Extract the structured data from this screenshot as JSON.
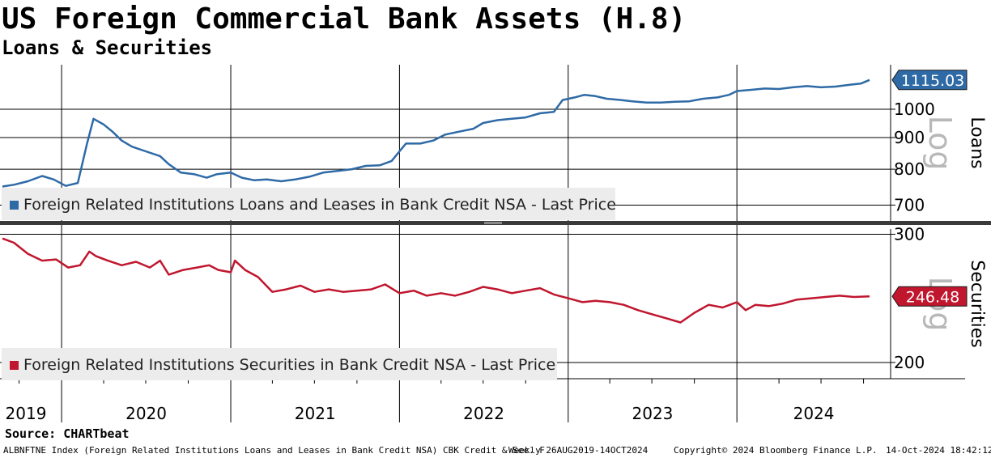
{
  "title": "US Foreign Commercial Bank Assets (H.8)",
  "subtitle": "Loans & Securities",
  "source": "Source: CHARTbeat",
  "footer": {
    "index_desc": "ALBNFTNE Index (Foreign Related Institutions Loans and Leases in Bank Credit NSA) CBK Credit & Sec. F",
    "range": "Weekly 26AUG2019-14OCT2024",
    "copyright": "Copyright© 2024 Bloomberg Finance L.P.",
    "timestamp": "14-Oct-2024 18:42:12"
  },
  "colors": {
    "loans": "#2e6aa6",
    "securities": "#c0162e",
    "grid": "#000000",
    "legend_bg": "#ececec"
  },
  "chart_data": [
    {
      "type": "line",
      "panel": "top",
      "ylabel": "Loans",
      "scale_label": "Log",
      "log_scale": true,
      "ylim": [
        660,
        1180
      ],
      "yticks": [
        700,
        800,
        900,
        1000
      ],
      "last_value_label": "1115.03",
      "legend": "Foreign Related Institutions Loans and Leases in Bank Credit NSA - Last Price",
      "x_start": "2019-08-26",
      "x_end": "2024-10-14",
      "x_tick_labels": [
        "2019",
        "2020",
        "2021",
        "2022",
        "2023",
        "2024"
      ],
      "series": [
        {
          "name": "Foreign Related Institutions Loans and Leases in Bank Credit NSA - Last Price",
          "points": [
            [
              "2019-08-26",
              750
            ],
            [
              "2019-09-20",
              755
            ],
            [
              "2019-10-20",
              765
            ],
            [
              "2019-11-20",
              780
            ],
            [
              "2019-12-15",
              770
            ],
            [
              "2020-01-10",
              752
            ],
            [
              "2020-02-05",
              760
            ],
            [
              "2020-02-25",
              880
            ],
            [
              "2020-03-10",
              965
            ],
            [
              "2020-04-01",
              945
            ],
            [
              "2020-04-20",
              920
            ],
            [
              "2020-05-10",
              890
            ],
            [
              "2020-06-01",
              870
            ],
            [
              "2020-07-01",
              855
            ],
            [
              "2020-08-01",
              840
            ],
            [
              "2020-08-20",
              815
            ],
            [
              "2020-09-15",
              790
            ],
            [
              "2020-10-15",
              785
            ],
            [
              "2020-11-10",
              775
            ],
            [
              "2020-12-01",
              785
            ],
            [
              "2021-01-01",
              790
            ],
            [
              "2021-01-25",
              775
            ],
            [
              "2021-02-20",
              768
            ],
            [
              "2021-03-20",
              770
            ],
            [
              "2021-04-20",
              765
            ],
            [
              "2021-05-20",
              770
            ],
            [
              "2021-06-20",
              778
            ],
            [
              "2021-07-20",
              790
            ],
            [
              "2021-08-20",
              795
            ],
            [
              "2021-09-20",
              800
            ],
            [
              "2021-10-20",
              810
            ],
            [
              "2021-11-20",
              812
            ],
            [
              "2021-12-15",
              825
            ],
            [
              "2022-01-01",
              855
            ],
            [
              "2022-01-15",
              880
            ],
            [
              "2022-02-15",
              880
            ],
            [
              "2022-03-15",
              890
            ],
            [
              "2022-04-10",
              910
            ],
            [
              "2022-05-10",
              920
            ],
            [
              "2022-06-10",
              930
            ],
            [
              "2022-07-01",
              950
            ],
            [
              "2022-08-01",
              960
            ],
            [
              "2022-09-01",
              965
            ],
            [
              "2022-10-01",
              970
            ],
            [
              "2022-11-01",
              985
            ],
            [
              "2022-12-01",
              990
            ],
            [
              "2022-12-20",
              1035
            ],
            [
              "2023-01-15",
              1045
            ],
            [
              "2023-02-05",
              1055
            ],
            [
              "2023-03-01",
              1050
            ],
            [
              "2023-03-25",
              1040
            ],
            [
              "2023-04-25",
              1035
            ],
            [
              "2023-05-20",
              1030
            ],
            [
              "2023-06-20",
              1025
            ],
            [
              "2023-07-20",
              1025
            ],
            [
              "2023-08-20",
              1028
            ],
            [
              "2023-09-20",
              1030
            ],
            [
              "2023-10-20",
              1040
            ],
            [
              "2023-11-20",
              1045
            ],
            [
              "2023-12-15",
              1055
            ],
            [
              "2024-01-01",
              1070
            ],
            [
              "2024-02-01",
              1075
            ],
            [
              "2024-03-01",
              1080
            ],
            [
              "2024-04-01",
              1078
            ],
            [
              "2024-05-01",
              1085
            ],
            [
              "2024-06-01",
              1090
            ],
            [
              "2024-07-01",
              1085
            ],
            [
              "2024-08-01",
              1088
            ],
            [
              "2024-09-01",
              1095
            ],
            [
              "2024-09-25",
              1100
            ],
            [
              "2024-10-14",
              1115.03
            ]
          ]
        }
      ]
    },
    {
      "type": "line",
      "panel": "bottom",
      "ylabel": "Securities",
      "scale_label": "Log",
      "log_scale": true,
      "ylim": [
        190,
        305
      ],
      "yticks": [
        200,
        300
      ],
      "last_value_label": "246.48",
      "legend": "Foreign Related Institutions Securities in Bank Credit NSA - Last Price",
      "x_start": "2019-08-26",
      "x_end": "2024-10-14",
      "series": [
        {
          "name": "Foreign Related Institutions Securities in Bank Credit NSA - Last Price",
          "points": [
            [
              "2019-08-26",
              296
            ],
            [
              "2019-09-20",
              292
            ],
            [
              "2019-10-20",
              282
            ],
            [
              "2019-11-20",
              276
            ],
            [
              "2019-12-20",
              277
            ],
            [
              "2020-01-15",
              270
            ],
            [
              "2020-02-10",
              272
            ],
            [
              "2020-03-01",
              284
            ],
            [
              "2020-03-15",
              280
            ],
            [
              "2020-04-10",
              276
            ],
            [
              "2020-05-10",
              272
            ],
            [
              "2020-06-10",
              275
            ],
            [
              "2020-07-10",
              270
            ],
            [
              "2020-08-01",
              276
            ],
            [
              "2020-08-20",
              264
            ],
            [
              "2020-09-20",
              268
            ],
            [
              "2020-10-20",
              270
            ],
            [
              "2020-11-15",
              272
            ],
            [
              "2020-12-05",
              268
            ],
            [
              "2021-01-01",
              266
            ],
            [
              "2021-01-10",
              276
            ],
            [
              "2021-02-01",
              268
            ],
            [
              "2021-03-01",
              262
            ],
            [
              "2021-04-01",
              250
            ],
            [
              "2021-05-01",
              252
            ],
            [
              "2021-06-01",
              255
            ],
            [
              "2021-07-01",
              250
            ],
            [
              "2021-08-01",
              252
            ],
            [
              "2021-09-01",
              250
            ],
            [
              "2021-10-01",
              251
            ],
            [
              "2021-11-01",
              252
            ],
            [
              "2021-12-01",
              256
            ],
            [
              "2022-01-01",
              249
            ],
            [
              "2022-02-01",
              251
            ],
            [
              "2022-03-01",
              247
            ],
            [
              "2022-04-01",
              249
            ],
            [
              "2022-05-01",
              247
            ],
            [
              "2022-06-01",
              250
            ],
            [
              "2022-07-01",
              254
            ],
            [
              "2022-08-01",
              252
            ],
            [
              "2022-09-01",
              249
            ],
            [
              "2022-10-01",
              251
            ],
            [
              "2022-11-01",
              253
            ],
            [
              "2022-12-01",
              248
            ],
            [
              "2023-01-01",
              245
            ],
            [
              "2023-02-01",
              242
            ],
            [
              "2023-03-01",
              243
            ],
            [
              "2023-04-01",
              242
            ],
            [
              "2023-05-01",
              240
            ],
            [
              "2023-06-01",
              236
            ],
            [
              "2023-07-01",
              233
            ],
            [
              "2023-08-01",
              230
            ],
            [
              "2023-09-01",
              227
            ],
            [
              "2023-10-01",
              234
            ],
            [
              "2023-11-01",
              240
            ],
            [
              "2023-12-01",
              238
            ],
            [
              "2024-01-01",
              242
            ],
            [
              "2024-01-20",
              236
            ],
            [
              "2024-02-10",
              240
            ],
            [
              "2024-03-10",
              239
            ],
            [
              "2024-04-10",
              241
            ],
            [
              "2024-05-10",
              244
            ],
            [
              "2024-06-10",
              245
            ],
            [
              "2024-07-10",
              246
            ],
            [
              "2024-08-10",
              247
            ],
            [
              "2024-09-10",
              246
            ],
            [
              "2024-10-14",
              246.48
            ]
          ]
        }
      ]
    }
  ]
}
